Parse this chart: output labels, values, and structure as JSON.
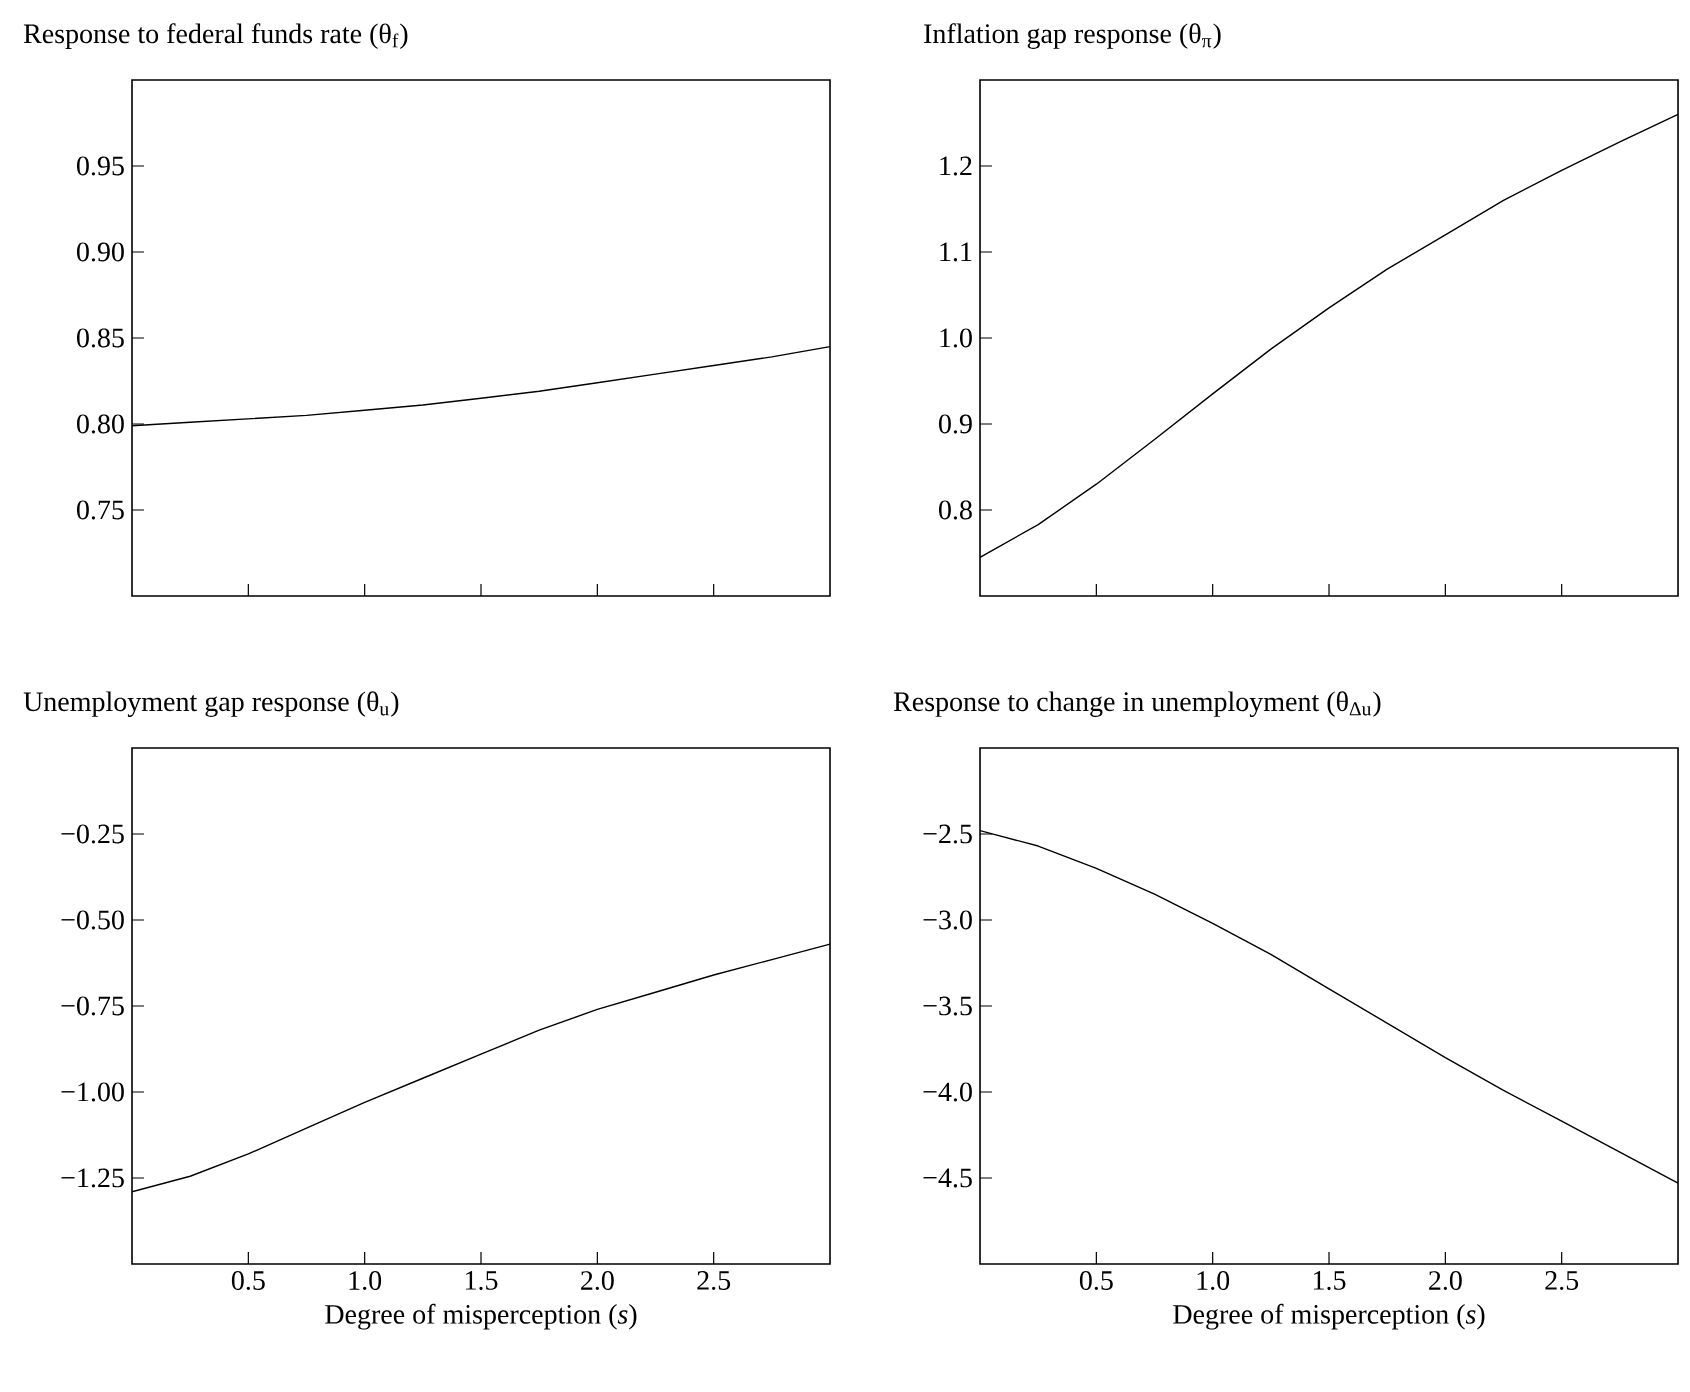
{
  "chart_data": [
    {
      "type": "line",
      "title": "Response to federal funds rate (θ$_{f}$)",
      "tick_labels": "y",
      "color": "#000000",
      "xlim": [
        0,
        3
      ],
      "ylim": [
        0.7,
        1.0
      ],
      "xticks": [
        {
          "value": 0.5,
          "label": null
        },
        {
          "value": 1.0,
          "label": null
        },
        {
          "value": 1.5,
          "label": null
        },
        {
          "value": 2.0,
          "label": null
        },
        {
          "value": 2.5,
          "label": null
        }
      ],
      "yticks": [
        0.75,
        {
          "value": 0.8,
          "label": "0.80"
        },
        0.85,
        {
          "value": 0.9,
          "label": "0.90"
        },
        0.95
      ],
      "x": [
        0,
        0.25,
        0.5,
        0.75,
        1,
        1.25,
        1.5,
        1.75,
        2,
        2.25,
        2.5,
        2.75,
        3
      ],
      "values": [
        0.799,
        0.801,
        0.803,
        0.805,
        0.808,
        0.811,
        0.815,
        0.819,
        0.824,
        0.829,
        0.834,
        0.839,
        0.845
      ]
    },
    {
      "type": "line",
      "title": "Inflation gap response (θ$_{π}$)",
      "tick_labels": "y",
      "color": "#000000",
      "xlim": [
        0,
        3
      ],
      "ylim": [
        0.7,
        1.3
      ],
      "xticks": [
        {
          "value": 0.5,
          "label": null
        },
        {
          "value": 1.0,
          "label": null
        },
        {
          "value": 1.5,
          "label": null
        },
        {
          "value": 2.0,
          "label": null
        },
        {
          "value": 2.5,
          "label": null
        }
      ],
      "yticks": [
        0.8,
        0.9,
        {
          "value": 1.0,
          "label": "1.0"
        },
        1.1,
        1.2
      ],
      "x": [
        0,
        0.25,
        0.5,
        0.75,
        1,
        1.25,
        1.5,
        1.75,
        2,
        2.25,
        2.5,
        2.75,
        3
      ],
      "values": [
        0.745,
        0.783,
        0.83,
        0.882,
        0.935,
        0.987,
        1.035,
        1.08,
        1.12,
        1.16,
        1.195,
        1.228,
        1.26
      ]
    },
    {
      "type": "line",
      "title": "Unemployment gap response (θ$_{u}$)",
      "xlabel": "Degree of misperception (*s*)",
      "color": "#000000",
      "xlim": [
        0,
        3
      ],
      "ylim": [
        -1.5,
        0
      ],
      "xticks": [
        0.5,
        {
          "value": 1.0,
          "label": "1.0"
        },
        1.5,
        {
          "value": 2.0,
          "label": "2.0"
        },
        2.5
      ],
      "yticks": [
        {
          "value": -1.25,
          "label": "−1.25"
        },
        {
          "value": -1.0,
          "label": "−1.00"
        },
        {
          "value": -0.75,
          "label": "−0.75"
        },
        {
          "value": -0.5,
          "label": "−0.50"
        },
        {
          "value": -0.25,
          "label": "−0.25"
        }
      ],
      "x": [
        0,
        0.25,
        0.5,
        0.75,
        1,
        1.25,
        1.5,
        1.75,
        2,
        2.25,
        2.5,
        2.75,
        3
      ],
      "values": [
        -1.29,
        -1.245,
        -1.18,
        -1.105,
        -1.03,
        -0.96,
        -0.89,
        -0.82,
        -0.76,
        -0.71,
        -0.66,
        -0.615,
        -0.57
      ]
    },
    {
      "type": "line",
      "title": "Response to change in unemployment (θ$_{Δu}$)",
      "xlabel": "Degree of misperception (*s*)",
      "color": "#000000",
      "xlim": [
        0,
        3
      ],
      "ylim": [
        -5,
        -2
      ],
      "xticks": [
        0.5,
        {
          "value": 1.0,
          "label": "1.0"
        },
        1.5,
        {
          "value": 2.0,
          "label": "2.0"
        },
        2.5
      ],
      "yticks": [
        {
          "value": -4.5,
          "label": "−4.5"
        },
        {
          "value": -4.0,
          "label": "−4.0"
        },
        {
          "value": -3.5,
          "label": "−3.5"
        },
        {
          "value": -3.0,
          "label": "−3.0"
        },
        {
          "value": -2.5,
          "label": "−2.5"
        }
      ],
      "x": [
        0,
        0.25,
        0.5,
        0.75,
        1,
        1.25,
        1.5,
        1.75,
        2,
        2.25,
        2.5,
        2.75,
        3
      ],
      "values": [
        -2.48,
        -2.57,
        -2.7,
        -2.85,
        -3.02,
        -3.2,
        -3.4,
        -3.6,
        -3.8,
        -3.99,
        -4.17,
        -4.35,
        -4.53
      ]
    }
  ]
}
